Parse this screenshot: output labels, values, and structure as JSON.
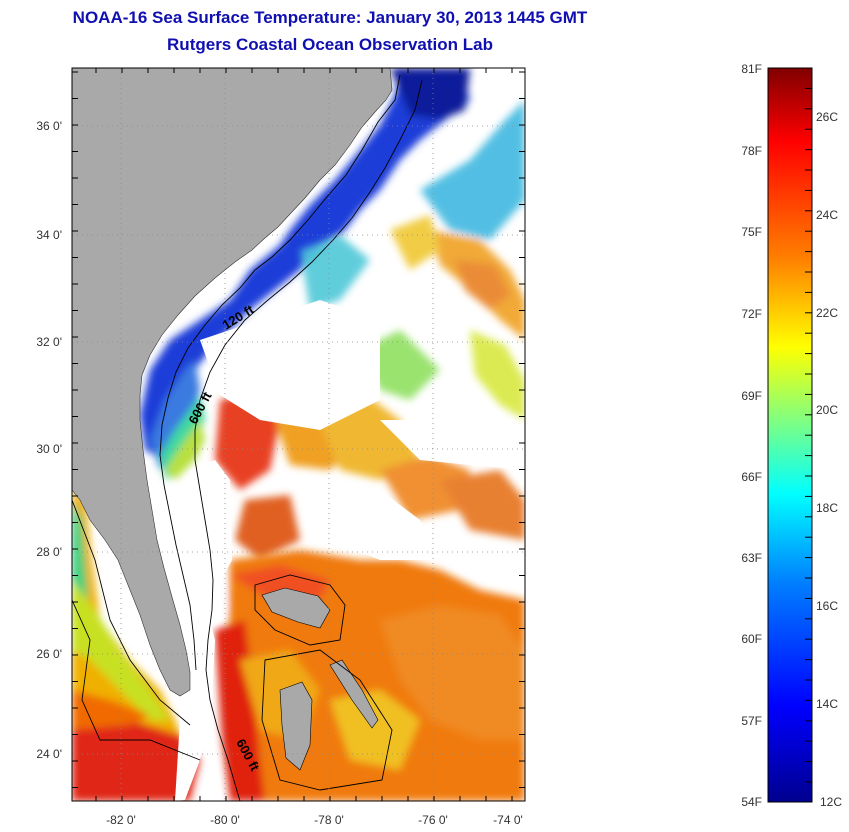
{
  "header": {
    "title": "NOAA-16 Sea Surface Temperature:  January 30, 2013 1445 GMT",
    "subtitle": "Rutgers Coastal Ocean Observation Lab"
  },
  "map": {
    "lon_ticks": [
      "-82 0'",
      "-80 0'",
      "-78 0'",
      "-76 0'",
      "-74 0'"
    ],
    "lat_ticks": [
      "36 0'",
      "34 0'",
      "32 0'",
      "30 0'",
      "28 0'",
      "26 0'",
      "24 0'"
    ],
    "contour_labels": [
      "120 ft",
      "600 ft",
      "600 ft"
    ],
    "colors": {
      "land": "#a9a9a9",
      "ocean_nodata": "#ffffff",
      "ocean_cold": "#001a9e",
      "ocean_warm": "#e01a10"
    }
  },
  "colorbar": {
    "fahrenheit_labels": [
      "81F",
      "78F",
      "75F",
      "72F",
      "69F",
      "66F",
      "63F",
      "60F",
      "57F",
      "54F"
    ],
    "celsius_labels": [
      "26C",
      "24C",
      "22C",
      "20C",
      "18C",
      "16C",
      "14C",
      "12C"
    ],
    "colormap": [
      "#00008f",
      "#0000ff",
      "#0080ff",
      "#00ffff",
      "#80ff80",
      "#ffff00",
      "#ff8000",
      "#ff0000",
      "#800000"
    ]
  }
}
